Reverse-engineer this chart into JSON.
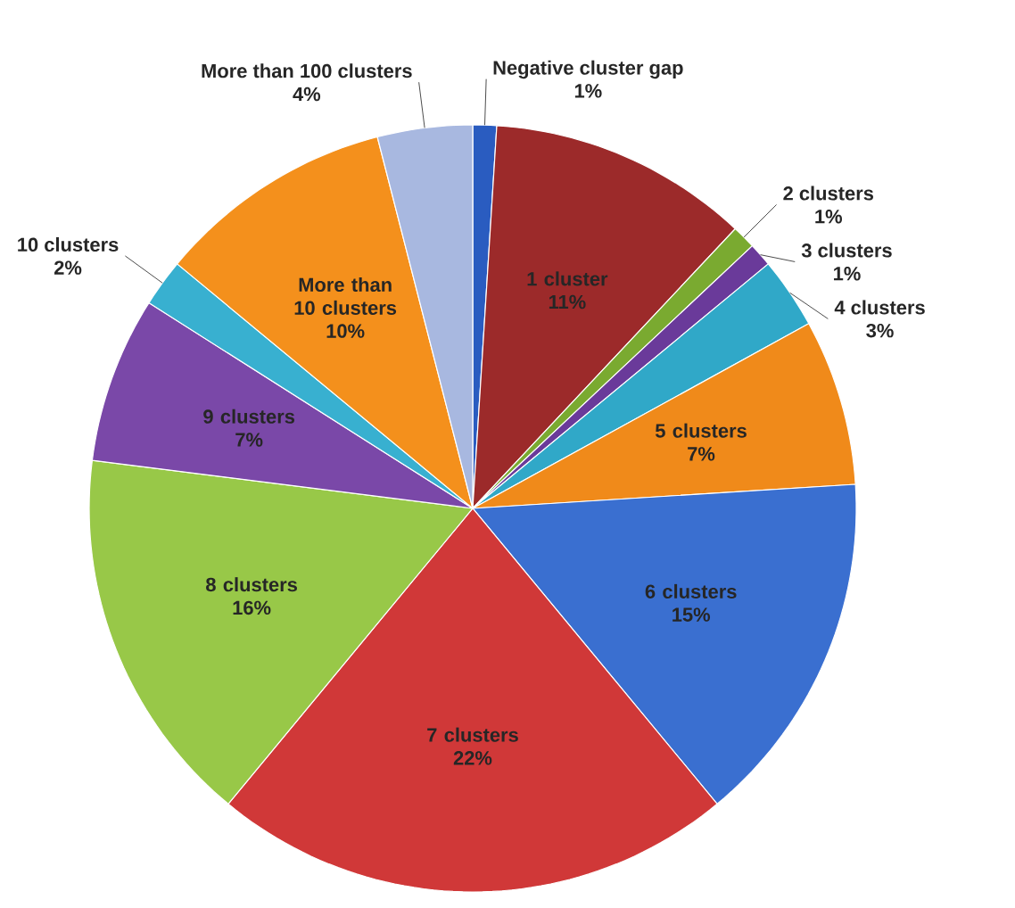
{
  "chart_data": {
    "type": "pie",
    "categories": [
      "Negative cluster gap",
      "1 cluster",
      "2 clusters",
      "3 clusters",
      "4 clusters",
      "5 clusters",
      "6 clusters",
      "7 clusters",
      "8 clusters",
      "9 clusters",
      "10 clusters",
      "More than 10 clusters",
      "More than 100 clusters"
    ],
    "values": [
      1,
      11,
      1,
      1,
      3,
      7,
      15,
      22,
      16,
      7,
      2,
      10,
      4
    ],
    "value_labels": [
      "1%",
      "11%",
      "1%",
      "1%",
      "3%",
      "7%",
      "15%",
      "22%",
      "16%",
      "7%",
      "2%",
      "10%",
      "4%"
    ],
    "colors": [
      "#2a5cc0",
      "#9c2a2a",
      "#7aaa30",
      "#6a3a9a",
      "#30a8c8",
      "#f08a1a",
      "#3a6fd0",
      "#d03838",
      "#98c848",
      "#7a48a8",
      "#38b0d0",
      "#f4901c",
      "#a8b8e0"
    ]
  }
}
